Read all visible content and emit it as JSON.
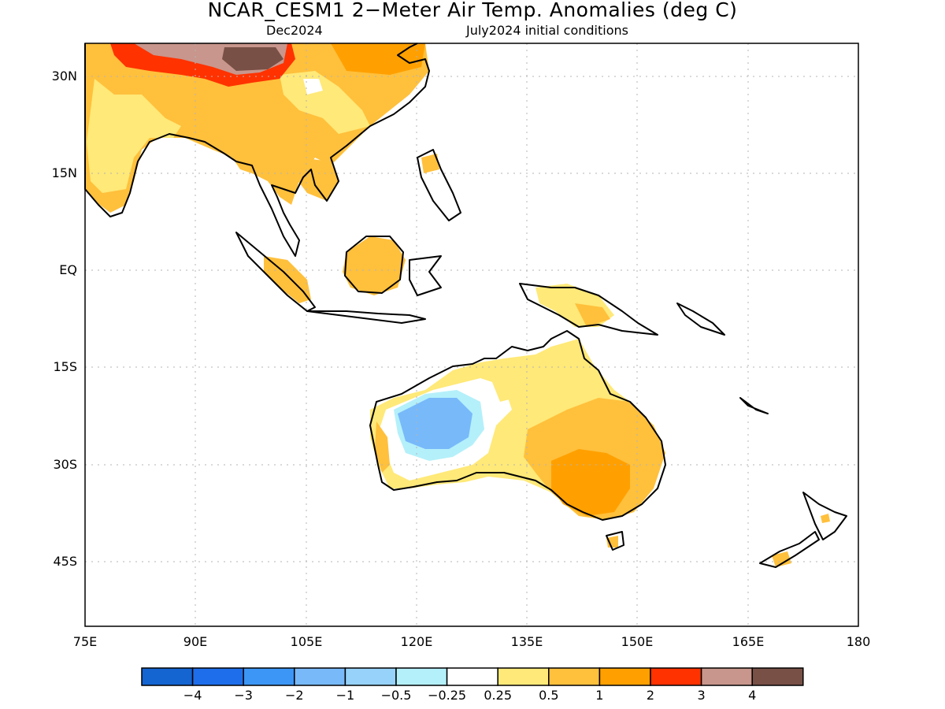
{
  "title": "NCAR_CESM1 2−Meter Air Temp. Anomalies (deg C)",
  "valid_month": "Dec2024",
  "init_label": "July2024 initial conditions",
  "lat_ticks": [
    "30N",
    "15N",
    "EQ",
    "15S",
    "30S",
    "45S"
  ],
  "lon_ticks": [
    "75E",
    "90E",
    "105E",
    "120E",
    "135E",
    "150E",
    "165E",
    "180"
  ],
  "colorbar": {
    "colors": [
      "#1464d2",
      "#1e6eeb",
      "#3c96f5",
      "#78b9fa",
      "#96d2fa",
      "#b4f0fa",
      "#ffffff",
      "#ffe978",
      "#ffc03c",
      "#ffa000",
      "#ff3200",
      "#c8968c",
      "#785046"
    ],
    "labels": [
      "−4",
      "−3",
      "−2",
      "−1",
      "−0.5",
      "−0.25",
      "0.25",
      "0.5",
      "1",
      "2",
      "3",
      "4"
    ]
  },
  "colors": {
    "coast": "#000000",
    "grid": "#b4b4b4"
  }
}
